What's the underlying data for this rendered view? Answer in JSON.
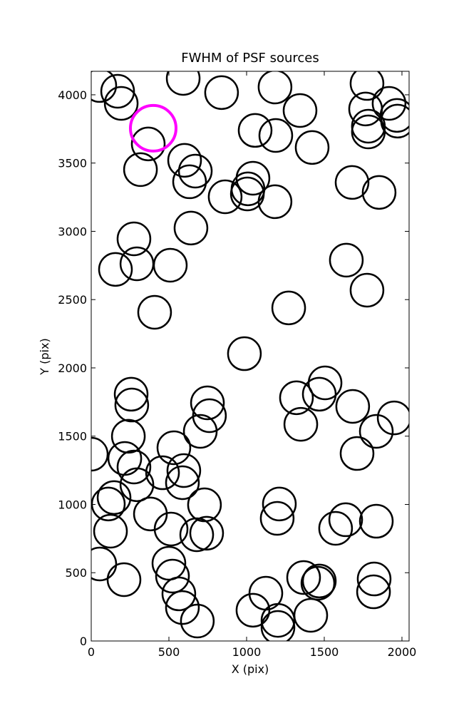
{
  "chart_data": {
    "type": "scatter",
    "title": "FWHM of PSF sources",
    "x_label": "X (pix)",
    "y_label": "Y (pix)",
    "xlim": [
      0,
      2046
    ],
    "ylim": [
      0,
      4172
    ],
    "xticks": [
      0,
      500,
      1000,
      1500,
      2000
    ],
    "yticks": [
      0,
      500,
      1000,
      1500,
      2000,
      2500,
      3000,
      3500,
      4000
    ],
    "grid": false,
    "series": [
      {
        "color": "#000000",
        "x": [
          55,
          170,
          193,
          592,
          839,
          1183,
          1775,
          1917,
          1766,
          1968,
          1972,
          1344,
          1055,
          1188,
          1422,
          1784,
          1784,
          367,
          317,
          601,
          670,
          633,
          1041,
          1009,
          1005,
          862,
          1183,
          1679,
          1853,
          642,
          275,
          294,
          156,
          509,
          1642,
          1775,
          1271,
          408,
          986,
          257,
          261,
          748,
          761,
          702,
          239,
          0,
          216,
          275,
          532,
          459,
          596,
          587,
          294,
          147,
          110,
          729,
          381,
          514,
          679,
          743,
          124,
          55,
          211,
          500,
          523,
          564,
          587,
          683,
          1321,
          1468,
          1505,
          1349,
          1683,
          1835,
          1950,
          1711,
          1211,
          1197,
          1367,
          1468,
          1459,
          1821,
          1817,
          1638,
          1573,
          1835,
          1124,
          1041,
          1202,
          1202,
          1413
        ],
        "values": [
          4068,
          4026,
          3937,
          4120,
          4016,
          4057,
          4083,
          3937,
          3896,
          3849,
          3807,
          3885,
          3739,
          3702,
          3614,
          3770,
          3728,
          3640,
          3452,
          3520,
          3441,
          3363,
          3389,
          3311,
          3274,
          3253,
          3217,
          3358,
          3285,
          3024,
          2945,
          2762,
          2721,
          2752,
          2789,
          2569,
          2439,
          2407,
          2104,
          1807,
          1728,
          1744,
          1650,
          1535,
          1499,
          1368,
          1337,
          1274,
          1415,
          1232,
          1248,
          1159,
          1144,
          1050,
          1003,
          997,
          930,
          820,
          778,
          789,
          804,
          564,
          449,
          569,
          475,
          345,
          245,
          146,
          1781,
          1807,
          1890,
          1587,
          1718,
          1535,
          1634,
          1373,
          1003,
          898,
          465,
          439,
          423,
          454,
          360,
          888,
          825,
          877,
          350,
          225,
          151,
          99,
          188
        ]
      },
      {
        "color": "#ff00ff",
        "x": [
          399
        ],
        "values": [
          3755
        ]
      }
    ]
  }
}
